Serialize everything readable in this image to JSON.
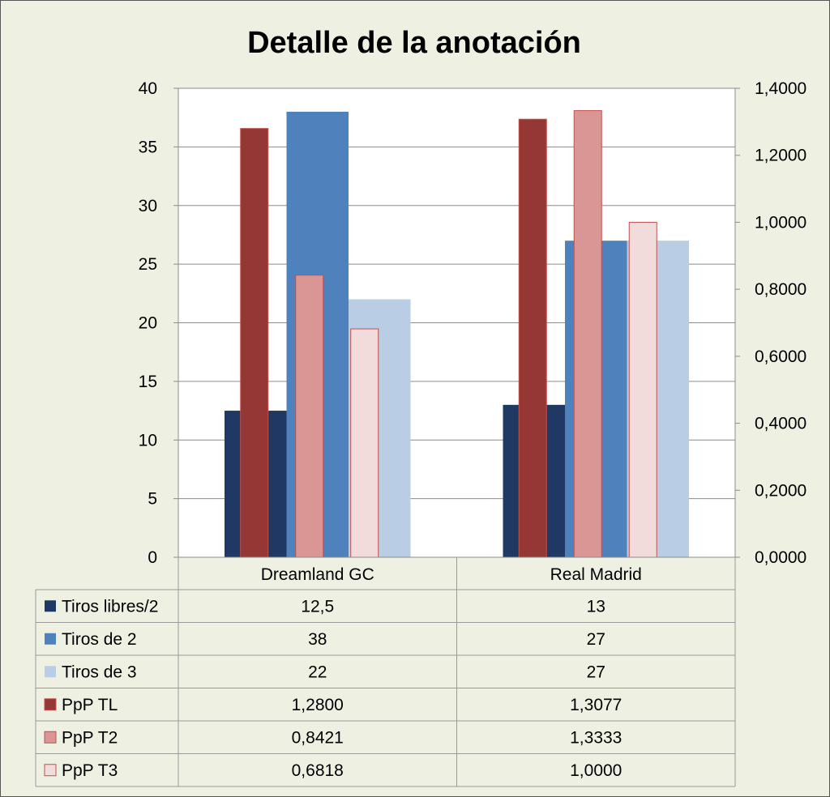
{
  "chart_data": {
    "type": "bar",
    "title": "Detalle de la anotación",
    "categories": [
      "Dreamland GC",
      "Real Madrid"
    ],
    "y_left": {
      "min": 0,
      "max": 40,
      "step": 5,
      "tick_labels": [
        "0",
        "5",
        "10",
        "15",
        "20",
        "25",
        "30",
        "35",
        "40"
      ]
    },
    "y_right": {
      "min": 0,
      "max": 1.4,
      "step": 0.2,
      "tick_labels": [
        "0,0000",
        "0,2000",
        "0,4000",
        "0,6000",
        "0,8000",
        "1,0000",
        "1,2000",
        "1,4000"
      ]
    },
    "grid": true,
    "legend": "data-table",
    "series": [
      {
        "name": "Tiros libres/2",
        "axis": "left",
        "values": [
          12.5,
          13
        ],
        "labels": [
          "12,5",
          "13"
        ],
        "color": "#1f3864"
      },
      {
        "name": "Tiros de 2",
        "axis": "left",
        "values": [
          38,
          27
        ],
        "labels": [
          "38",
          "27"
        ],
        "color": "#4f81bd"
      },
      {
        "name": "Tiros de 3",
        "axis": "left",
        "values": [
          22,
          27
        ],
        "labels": [
          "22",
          "27"
        ],
        "color": "#b9cde5"
      },
      {
        "name": "PpP TL",
        "axis": "right",
        "values": [
          1.28,
          1.3077
        ],
        "labels": [
          "1,2800",
          "1,3077"
        ],
        "color": "#953735"
      },
      {
        "name": "PpP T2",
        "axis": "right",
        "values": [
          0.8421,
          1.3333
        ],
        "labels": [
          "0,8421",
          "1,3333"
        ],
        "color": "#d99694"
      },
      {
        "name": "PpP T3",
        "axis": "right",
        "values": [
          0.6818,
          1.0
        ],
        "labels": [
          "0,6818",
          "1,0000"
        ],
        "color": "#f2dcdb"
      }
    ]
  }
}
